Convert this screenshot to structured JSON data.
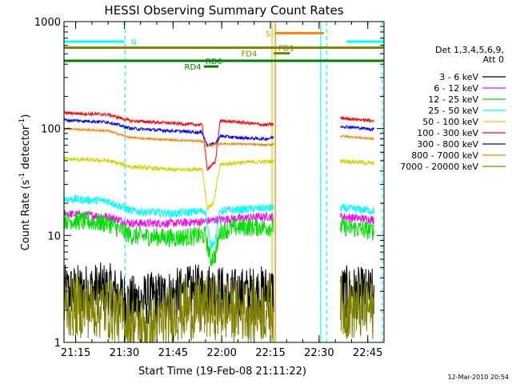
{
  "chart_data": {
    "type": "line",
    "title": "HESSI Observing Summary Count Rates",
    "xlabel": "Start Time (19-Feb-08 21:11:22)",
    "ylabel_main": "Count Rate (s",
    "ylabel_exp1": "-1",
    "ylabel_mid": " detector",
    "ylabel_exp2": "-1",
    "ylabel_end": ")",
    "ylog": true,
    "ylim": [
      1,
      1000
    ],
    "xlim_min": [
      1271.4,
      1370
    ],
    "x_ticks": [
      {
        "m": 1275,
        "label": "21:15"
      },
      {
        "m": 1290,
        "label": "21:30"
      },
      {
        "m": 1305,
        "label": "21:45"
      },
      {
        "m": 1320,
        "label": "22:00"
      },
      {
        "m": 1335,
        "label": "22:15"
      },
      {
        "m": 1350,
        "label": "22:30"
      },
      {
        "m": 1365,
        "label": "22:45"
      }
    ],
    "y_ticks": [
      {
        "v": 1,
        "label": "1"
      },
      {
        "v": 10,
        "label": "10"
      },
      {
        "v": 100,
        "label": "100"
      },
      {
        "v": 1000,
        "label": "1000"
      }
    ],
    "legend_title1": "Det 1,3,4,5,6,9,",
    "legend_title2": "Att 0",
    "series": [
      {
        "name": "3 - 6 keV",
        "color": "#000000",
        "noise": 0.25,
        "points": [
          [
            1271.4,
            3.0
          ],
          [
            1285,
            3.2
          ],
          [
            1292,
            2.4
          ],
          [
            1306,
            2.8
          ],
          [
            1316,
            3.2
          ],
          [
            1323,
            2.8
          ],
          [
            1333.5,
            3.0
          ],
          [
            1357,
            3.0
          ],
          [
            1367,
            2.8
          ]
        ]
      },
      {
        "name": "6 - 12 keV",
        "color": "#ff00ff",
        "noise": 0.04,
        "points": [
          [
            1271.4,
            16
          ],
          [
            1285,
            15
          ],
          [
            1292,
            13
          ],
          [
            1305,
            13
          ],
          [
            1315,
            13.5
          ],
          [
            1318,
            14
          ],
          [
            1333.5,
            15
          ],
          [
            1357,
            15
          ],
          [
            1367,
            14
          ]
        ]
      },
      {
        "name": "12 - 25 keV",
        "color": "#00e000",
        "noise": 0.09,
        "points": [
          [
            1271.4,
            14
          ],
          [
            1285,
            13
          ],
          [
            1292,
            10
          ],
          [
            1305,
            9.5
          ],
          [
            1315,
            10
          ],
          [
            1316.5,
            6
          ],
          [
            1318,
            6.5
          ],
          [
            1319.5,
            11
          ],
          [
            1325,
            12
          ],
          [
            1333.5,
            12
          ],
          [
            1357,
            12
          ],
          [
            1367,
            11
          ]
        ]
      },
      {
        "name": "25 - 50 keV",
        "color": "#00ffff",
        "noise": 0.04,
        "points": [
          [
            1271.4,
            22
          ],
          [
            1285,
            21
          ],
          [
            1292,
            17
          ],
          [
            1305,
            16
          ],
          [
            1315,
            17
          ],
          [
            1316.5,
            8
          ],
          [
            1318,
            9
          ],
          [
            1319.5,
            17
          ],
          [
            1333.5,
            18
          ],
          [
            1357,
            18
          ],
          [
            1367,
            17
          ]
        ]
      },
      {
        "name": "50 - 100 keV",
        "color": "#d4d400",
        "noise": 0.02,
        "points": [
          [
            1271.4,
            52
          ],
          [
            1285,
            50
          ],
          [
            1292,
            44
          ],
          [
            1305,
            41
          ],
          [
            1314,
            42
          ],
          [
            1315.5,
            18
          ],
          [
            1317.5,
            20
          ],
          [
            1319.5,
            46
          ],
          [
            1325,
            48
          ],
          [
            1333.5,
            49
          ],
          [
            1357,
            50
          ],
          [
            1367,
            47
          ]
        ]
      },
      {
        "name": "100 - 300 keV",
        "color": "#ff0000",
        "noise": 0.015,
        "points": [
          [
            1271.4,
            140
          ],
          [
            1285,
            135
          ],
          [
            1292,
            118
          ],
          [
            1305,
            112
          ],
          [
            1314,
            108
          ],
          [
            1315.5,
            42
          ],
          [
            1318,
            48
          ],
          [
            1319.5,
            118
          ],
          [
            1325,
            115
          ],
          [
            1333.5,
            108
          ],
          [
            1357,
            125
          ],
          [
            1367,
            118
          ]
        ]
      },
      {
        "name": "300 - 800 keV",
        "color": "#0000ff",
        "noise": 0.015,
        "points": [
          [
            1271.4,
            120
          ],
          [
            1285,
            115
          ],
          [
            1292,
            100
          ],
          [
            1305,
            95
          ],
          [
            1314,
            92
          ],
          [
            1315.5,
            70
          ],
          [
            1318,
            72
          ],
          [
            1319.5,
            85
          ],
          [
            1325,
            82
          ],
          [
            1333.5,
            80
          ],
          [
            1357,
            105
          ],
          [
            1367,
            98
          ]
        ]
      },
      {
        "name": "800 - 7000 keV",
        "color": "#ff8000",
        "noise": 0.01,
        "points": [
          [
            1271.4,
            100
          ],
          [
            1285,
            95
          ],
          [
            1292,
            82
          ],
          [
            1305,
            78
          ],
          [
            1314,
            76
          ],
          [
            1315.5,
            68
          ],
          [
            1319.5,
            72
          ],
          [
            1325,
            72
          ],
          [
            1333.5,
            70
          ],
          [
            1357,
            85
          ],
          [
            1367,
            80
          ]
        ]
      },
      {
        "name": "7000 - 20000 keV",
        "color": "#808000",
        "noise": 0.3,
        "points": [
          [
            1271.4,
            2.2
          ],
          [
            1285,
            2.1
          ],
          [
            1292,
            1.5
          ],
          [
            1300,
            1.4
          ],
          [
            1306,
            2.0
          ],
          [
            1316,
            2.1
          ],
          [
            1323,
            2.0
          ],
          [
            1333.5,
            2.0
          ],
          [
            1357,
            2.1
          ],
          [
            1367,
            2.0
          ]
        ]
      }
    ],
    "flags": [
      {
        "label": "N",
        "color": "#00ffff",
        "level": 650,
        "segments": [
          [
            1271.4,
            1290
          ],
          [
            1358.5,
            1370
          ]
        ],
        "label_at": 1292
      },
      {
        "label": "S",
        "color": "#ff8000",
        "level": 780,
        "segments": [
          [
            1336.5,
            1351.5
          ]
        ],
        "label_at": 1333.5
      },
      {
        "label": "FD1",
        "color": "#808000",
        "level": 570,
        "segments": [
          [
            1271.4,
            1370
          ]
        ],
        "label_at": 1337.5
      },
      {
        "label": "FD4",
        "color": "#808000",
        "level": 505,
        "segments": [
          [
            1336,
            1341
          ]
        ],
        "label_at": 1326
      },
      {
        "label": "RD0",
        "color": "#008000",
        "level": 430,
        "segments": [
          [
            1271.4,
            1370
          ]
        ],
        "label_at": 1315
      },
      {
        "label": "RD4",
        "color": "#008000",
        "level": 380,
        "segments": [
          [
            1314.5,
            1319
          ]
        ],
        "label_at": 1308.5
      }
    ],
    "vlines": [
      {
        "m": 1271.4,
        "color": "#00ffff",
        "style": "solid"
      },
      {
        "m": 1290.2,
        "color": "#00ffff",
        "style": "dashed"
      },
      {
        "m": 1335.5,
        "color": "#d4d400",
        "style": "solid"
      },
      {
        "m": 1336.5,
        "color": "#ff8000",
        "style": "solid"
      },
      {
        "m": 1350.5,
        "color": "#00ffff",
        "style": "solid"
      },
      {
        "m": 1352.3,
        "color": "#00ffff",
        "style": "dashed"
      },
      {
        "m": 1369.5,
        "color": "#00ffff",
        "style": "dashed"
      }
    ],
    "gaps": [
      [
        1336,
        1356.5
      ]
    ]
  },
  "footer_date": "12-Mar-2010 20:54"
}
